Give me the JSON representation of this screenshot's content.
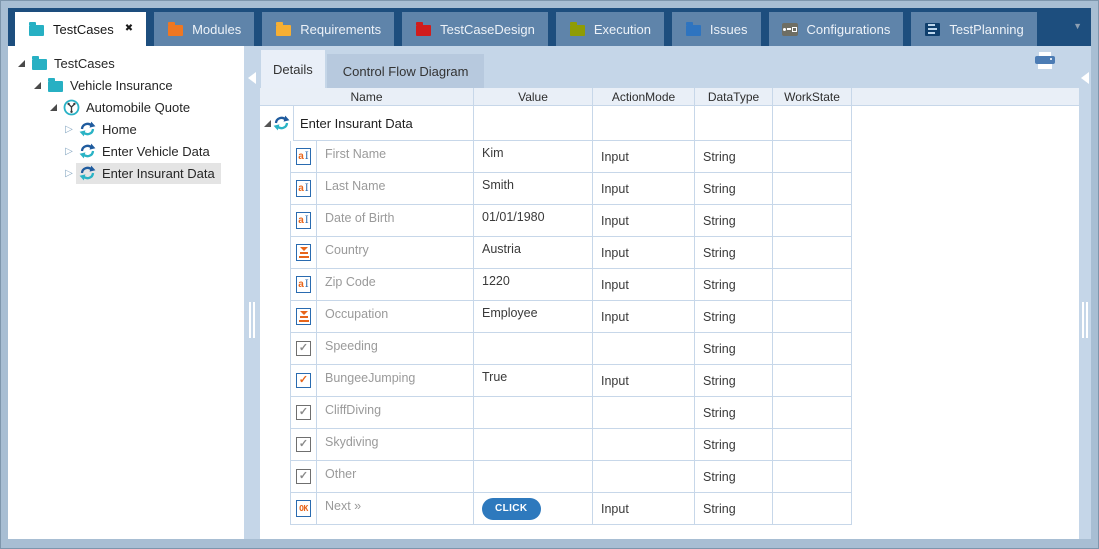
{
  "tab_bar": {
    "overflow_glyph": "▼",
    "tabs": [
      {
        "label": "TestCases",
        "icon": "folder",
        "color": "#27b0c3",
        "active": true,
        "closable": true
      },
      {
        "label": "Modules",
        "icon": "folder",
        "color": "#ef7722"
      },
      {
        "label": "Requirements",
        "icon": "folder",
        "color": "#f6af33"
      },
      {
        "label": "TestCaseDesign",
        "icon": "folder",
        "color": "#d11c1c"
      },
      {
        "label": "Execution",
        "icon": "folder",
        "color": "#8f9c04"
      },
      {
        "label": "Issues",
        "icon": "folder",
        "color": "#2e74c0"
      },
      {
        "label": "Configurations",
        "icon": "key"
      },
      {
        "label": "TestPlanning",
        "icon": "list"
      }
    ]
  },
  "tree": {
    "items": [
      {
        "label": "TestCases",
        "icon": "folder",
        "color": "#27b0c3",
        "level": 0,
        "expander": "expanded"
      },
      {
        "label": "Vehicle Insurance",
        "icon": "folder",
        "color": "#27b0c3",
        "level": 1,
        "expander": "expanded"
      },
      {
        "label": "Automobile Quote",
        "icon": "branch",
        "level": 2,
        "expander": "expanded"
      },
      {
        "label": "Home",
        "icon": "sync",
        "level": 3,
        "expander": "collapsed"
      },
      {
        "label": "Enter Vehicle Data",
        "icon": "sync",
        "level": 3,
        "expander": "collapsed"
      },
      {
        "label": "Enter Insurant Data",
        "icon": "sync",
        "level": 3,
        "expander": "collapsed",
        "selected": true
      }
    ]
  },
  "doc_tabs": {
    "tabs": [
      {
        "label": "Details",
        "active": true
      },
      {
        "label": "Control Flow Diagram",
        "active": false
      }
    ]
  },
  "table": {
    "columns": [
      "Name",
      "Value",
      "ActionMode",
      "DataType",
      "WorkState"
    ],
    "parent_row": {
      "name": "Enter Insurant Data",
      "icon": "sync",
      "expanded": true
    },
    "rows": [
      {
        "icon": "textfield",
        "name": "First Name",
        "value": "Kim",
        "action": "Input",
        "type": "String",
        "workstate": ""
      },
      {
        "icon": "textfield",
        "name": "Last Name",
        "value": "Smith",
        "action": "Input",
        "type": "String",
        "workstate": ""
      },
      {
        "icon": "textfield",
        "name": "Date of Birth",
        "value": "01/01/1980",
        "action": "Input",
        "type": "String",
        "workstate": ""
      },
      {
        "icon": "dropdown",
        "name": "Country",
        "value": "Austria",
        "action": "Input",
        "type": "String",
        "workstate": ""
      },
      {
        "icon": "textfield",
        "name": "Zip Code",
        "value": "1220",
        "action": "Input",
        "type": "String",
        "workstate": ""
      },
      {
        "icon": "dropdown",
        "name": "Occupation",
        "value": "Employee",
        "action": "Input",
        "type": "String",
        "workstate": ""
      },
      {
        "icon": "checkbox",
        "name": "Speeding",
        "value": "",
        "action": "",
        "type": "String",
        "workstate": ""
      },
      {
        "icon": "checkbox-checked",
        "name": "BungeeJumping",
        "value": "True",
        "action": "Input",
        "type": "String",
        "workstate": ""
      },
      {
        "icon": "checkbox",
        "name": "CliffDiving",
        "value": "",
        "action": "",
        "type": "String",
        "workstate": ""
      },
      {
        "icon": "checkbox",
        "name": "Skydiving",
        "value": "",
        "action": "",
        "type": "String",
        "workstate": ""
      },
      {
        "icon": "checkbox",
        "name": "Other",
        "value": "",
        "action": "",
        "type": "String",
        "workstate": ""
      },
      {
        "icon": "ok",
        "name": "Next »",
        "value": "",
        "value_button": "CLICK",
        "action": "Input",
        "type": "String",
        "workstate": ""
      }
    ]
  },
  "icons": {
    "check_glyph": "✓",
    "ok_glyph": "OK",
    "close_glyph": "✖",
    "collapsed_arrow": "▷"
  },
  "colors": {
    "navy": "#1d4e7e",
    "inactive_tab": "#5f84aa",
    "content_bg": "#c5d6e8",
    "grid_border": "#c7d7e9",
    "orange": "#e8651a",
    "icon_blue": "#2a6bb0",
    "teal": "#29b2c6",
    "sync_dark_blue": "#1f5b9e",
    "click_button": "#2e79bd",
    "selection_gray": "#e4e4e4"
  }
}
